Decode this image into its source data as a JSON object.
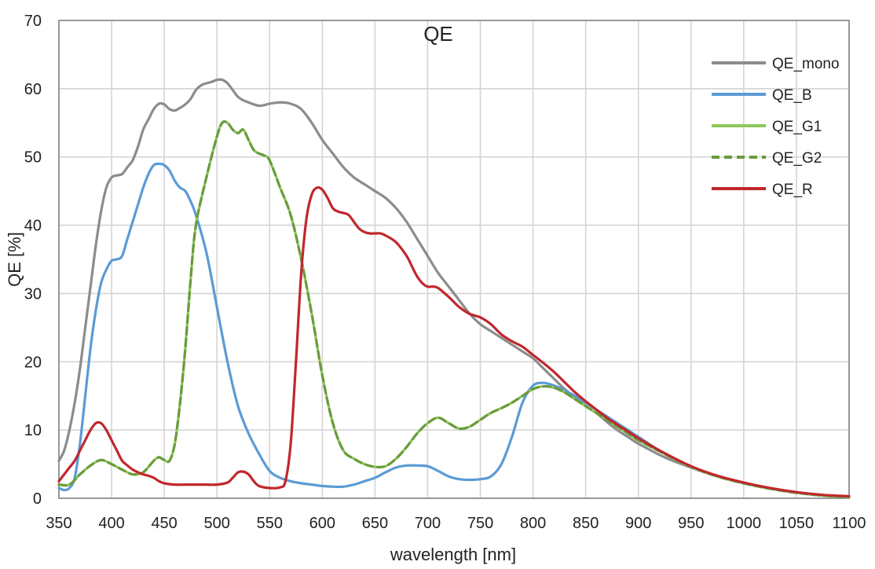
{
  "chart_data": {
    "type": "line",
    "title": "QE",
    "xlabel": "wavelength [nm]",
    "ylabel": "QE [%]",
    "xlim": [
      350,
      1100
    ],
    "ylim": [
      0,
      70
    ],
    "xticks": [
      350,
      400,
      450,
      500,
      550,
      600,
      650,
      700,
      750,
      800,
      850,
      900,
      950,
      1000,
      1050,
      1100
    ],
    "yticks": [
      0,
      10,
      20,
      30,
      40,
      50,
      60,
      70
    ],
    "grid": true,
    "legend_position": "top-right",
    "series": [
      {
        "name": "QE_mono",
        "color": "#8c8c8c",
        "dash": "solid",
        "x": [
          350,
          355,
          360,
          365,
          370,
          375,
          380,
          385,
          390,
          395,
          400,
          405,
          410,
          415,
          420,
          425,
          430,
          435,
          440,
          445,
          450,
          455,
          460,
          465,
          470,
          475,
          480,
          485,
          490,
          495,
          500,
          505,
          510,
          515,
          520,
          525,
          530,
          535,
          540,
          545,
          550,
          560,
          570,
          580,
          590,
          600,
          610,
          620,
          630,
          640,
          650,
          660,
          670,
          680,
          690,
          700,
          710,
          720,
          730,
          740,
          750,
          760,
          770,
          780,
          790,
          800,
          810,
          820,
          830,
          840,
          850,
          860,
          870,
          880,
          890,
          900,
          925,
          950,
          975,
          1000,
          1025,
          1050,
          1075,
          1100
        ],
        "y": [
          5.5,
          7,
          10,
          14,
          19,
          25,
          31,
          37,
          42,
          45.5,
          47,
          47.3,
          47.5,
          48.5,
          49.5,
          51.5,
          54,
          55.5,
          57,
          57.8,
          57.7,
          57.0,
          56.8,
          57.2,
          57.7,
          58.5,
          59.8,
          60.5,
          60.8,
          61.0,
          61.3,
          61.3,
          60.8,
          59.8,
          58.8,
          58.3,
          58.0,
          57.7,
          57.5,
          57.6,
          57.8,
          58.0,
          57.8,
          57.0,
          55.0,
          52.5,
          50.5,
          48.5,
          47.0,
          46.0,
          45.0,
          44.0,
          42.5,
          40.5,
          38.0,
          35.5,
          33.0,
          31.0,
          29.0,
          27.0,
          25.5,
          24.5,
          23.5,
          22.5,
          21.5,
          20.5,
          19.0,
          17.5,
          16.0,
          14.8,
          13.5,
          12.5,
          11.2,
          10.0,
          9.0,
          8.0,
          6.0,
          4.5,
          3.2,
          2.2,
          1.4,
          0.8,
          0.4,
          0.2
        ]
      },
      {
        "name": "QE_B",
        "color": "#5b9bd5",
        "dash": "solid",
        "x": [
          350,
          355,
          360,
          365,
          370,
          375,
          380,
          385,
          390,
          395,
          400,
          405,
          410,
          415,
          420,
          425,
          430,
          435,
          440,
          445,
          450,
          455,
          460,
          465,
          470,
          475,
          480,
          490,
          500,
          510,
          520,
          530,
          540,
          550,
          560,
          570,
          580,
          590,
          600,
          610,
          620,
          630,
          640,
          650,
          660,
          670,
          680,
          690,
          700,
          710,
          720,
          730,
          740,
          750,
          760,
          770,
          780,
          790,
          800,
          810,
          820,
          830,
          840,
          850,
          860,
          870,
          880,
          890,
          900,
          925,
          950,
          975,
          1000,
          1025,
          1050,
          1075,
          1100
        ],
        "y": [
          1.5,
          1.2,
          1.5,
          3,
          8,
          15,
          22,
          27.5,
          31.5,
          33.5,
          34.8,
          35.0,
          35.5,
          38,
          40.5,
          43,
          45.5,
          47.5,
          48.8,
          49.0,
          48.8,
          48.0,
          46.5,
          45.5,
          45.0,
          43.5,
          41.5,
          36.0,
          28.0,
          20.0,
          13.5,
          9.5,
          6.5,
          4.0,
          3.0,
          2.5,
          2.2,
          2.0,
          1.8,
          1.7,
          1.7,
          2.0,
          2.5,
          3.0,
          3.8,
          4.5,
          4.8,
          4.8,
          4.7,
          4.0,
          3.2,
          2.8,
          2.7,
          2.8,
          3.2,
          5.0,
          9.0,
          14.0,
          16.5,
          16.9,
          16.5,
          15.8,
          15.0,
          14.0,
          13.0,
          12.0,
          11.0,
          10.0,
          9.0,
          6.5,
          4.6,
          3.2,
          2.2,
          1.4,
          0.8,
          0.4,
          0.2
        ]
      },
      {
        "name": "QE_G1",
        "color": "#8dc85a",
        "dash": "solid",
        "x": [
          350,
          360,
          370,
          380,
          390,
          400,
          410,
          420,
          430,
          440,
          445,
          450,
          455,
          460,
          465,
          470,
          475,
          480,
          490,
          500,
          505,
          510,
          515,
          520,
          525,
          530,
          535,
          540,
          545,
          550,
          560,
          570,
          580,
          590,
          600,
          610,
          620,
          630,
          640,
          650,
          660,
          670,
          680,
          690,
          700,
          710,
          720,
          730,
          740,
          750,
          760,
          770,
          780,
          790,
          800,
          810,
          820,
          830,
          840,
          850,
          860,
          870,
          880,
          890,
          900,
          925,
          950,
          975,
          1000,
          1025,
          1050,
          1075,
          1100
        ],
        "y": [
          2,
          2.0,
          3.5,
          4.8,
          5.6,
          5.0,
          4.2,
          3.5,
          3.8,
          5.5,
          6.0,
          5.6,
          5.5,
          8.0,
          14.0,
          22.0,
          32.0,
          40.0,
          47.0,
          53.0,
          55.0,
          55.0,
          54.0,
          53.5,
          54.0,
          52.5,
          51.0,
          50.5,
          50.2,
          49.5,
          45.5,
          41.5,
          35.0,
          27.0,
          18.0,
          11.0,
          7.0,
          5.8,
          5.0,
          4.6,
          4.7,
          5.8,
          7.5,
          9.5,
          11.0,
          11.8,
          11.0,
          10.2,
          10.5,
          11.5,
          12.5,
          13.2,
          14.0,
          15.0,
          16.0,
          16.4,
          16.2,
          15.5,
          14.5,
          13.5,
          12.5,
          11.5,
          10.5,
          9.5,
          8.5,
          6.5,
          4.6,
          3.2,
          2.2,
          1.4,
          0.8,
          0.4,
          0.2
        ]
      },
      {
        "name": "QE_G2",
        "color": "#6a9b3c",
        "dash": "dashed",
        "x": [
          350,
          360,
          370,
          380,
          390,
          400,
          410,
          420,
          430,
          440,
          445,
          450,
          455,
          460,
          465,
          470,
          475,
          480,
          490,
          500,
          505,
          510,
          515,
          520,
          525,
          530,
          535,
          540,
          545,
          550,
          560,
          570,
          580,
          590,
          600,
          610,
          620,
          630,
          640,
          650,
          660,
          670,
          680,
          690,
          700,
          710,
          720,
          730,
          740,
          750,
          760,
          770,
          780,
          790,
          800,
          810,
          820,
          830,
          840,
          850,
          860,
          870,
          880,
          890,
          900,
          925,
          950,
          975,
          1000,
          1025,
          1050,
          1075,
          1100
        ],
        "y": [
          2,
          2.0,
          3.5,
          4.8,
          5.6,
          5.0,
          4.2,
          3.5,
          3.8,
          5.5,
          6.0,
          5.6,
          5.5,
          8.0,
          14.0,
          22.0,
          32.0,
          40.0,
          47.0,
          53.0,
          55.0,
          55.0,
          54.0,
          53.5,
          54.0,
          52.5,
          51.0,
          50.5,
          50.2,
          49.5,
          45.5,
          41.5,
          35.0,
          27.0,
          18.0,
          11.0,
          7.0,
          5.8,
          5.0,
          4.6,
          4.7,
          5.8,
          7.5,
          9.5,
          11.0,
          11.8,
          11.0,
          10.2,
          10.5,
          11.5,
          12.5,
          13.2,
          14.0,
          15.0,
          16.0,
          16.4,
          16.2,
          15.5,
          14.5,
          13.5,
          12.5,
          11.5,
          10.5,
          9.5,
          8.5,
          6.5,
          4.6,
          3.2,
          2.2,
          1.4,
          0.8,
          0.4,
          0.2
        ]
      },
      {
        "name": "QE_R",
        "color": "#c0272d",
        "dash": "solid",
        "x": [
          350,
          355,
          360,
          365,
          370,
          375,
          380,
          385,
          390,
          395,
          400,
          405,
          410,
          415,
          420,
          425,
          430,
          435,
          440,
          445,
          450,
          460,
          470,
          480,
          490,
          500,
          510,
          515,
          520,
          525,
          530,
          535,
          540,
          550,
          560,
          565,
          570,
          575,
          580,
          585,
          590,
          595,
          600,
          605,
          610,
          615,
          620,
          625,
          630,
          635,
          640,
          645,
          650,
          655,
          660,
          670,
          680,
          685,
          690,
          695,
          700,
          705,
          710,
          720,
          730,
          740,
          750,
          760,
          770,
          780,
          790,
          800,
          810,
          820,
          830,
          840,
          850,
          860,
          870,
          880,
          890,
          900,
          925,
          950,
          975,
          1000,
          1025,
          1050,
          1075,
          1100
        ],
        "y": [
          2.5,
          3.5,
          4.5,
          5.5,
          7.0,
          8.5,
          10.0,
          11.0,
          11.0,
          10.0,
          8.5,
          7.0,
          5.5,
          4.8,
          4.2,
          3.8,
          3.5,
          3.3,
          3.0,
          2.5,
          2.2,
          2.0,
          2.0,
          2.0,
          2.0,
          2.0,
          2.3,
          3.0,
          3.8,
          3.9,
          3.5,
          2.5,
          1.8,
          1.5,
          1.6,
          2.5,
          8.0,
          20.0,
          33.0,
          41.0,
          44.5,
          45.5,
          45.2,
          44.0,
          42.5,
          42.0,
          41.8,
          41.5,
          40.5,
          39.5,
          39.0,
          38.8,
          38.8,
          38.8,
          38.5,
          37.5,
          35.5,
          34.0,
          32.5,
          31.5,
          31.0,
          31.0,
          30.8,
          29.5,
          28.0,
          27.0,
          26.5,
          25.5,
          24.0,
          23.0,
          22.2,
          21.0,
          19.8,
          18.5,
          17.0,
          15.5,
          14.2,
          13.0,
          11.8,
          10.8,
          9.8,
          8.8,
          6.6,
          4.7,
          3.3,
          2.3,
          1.5,
          0.9,
          0.5,
          0.3
        ]
      }
    ]
  }
}
